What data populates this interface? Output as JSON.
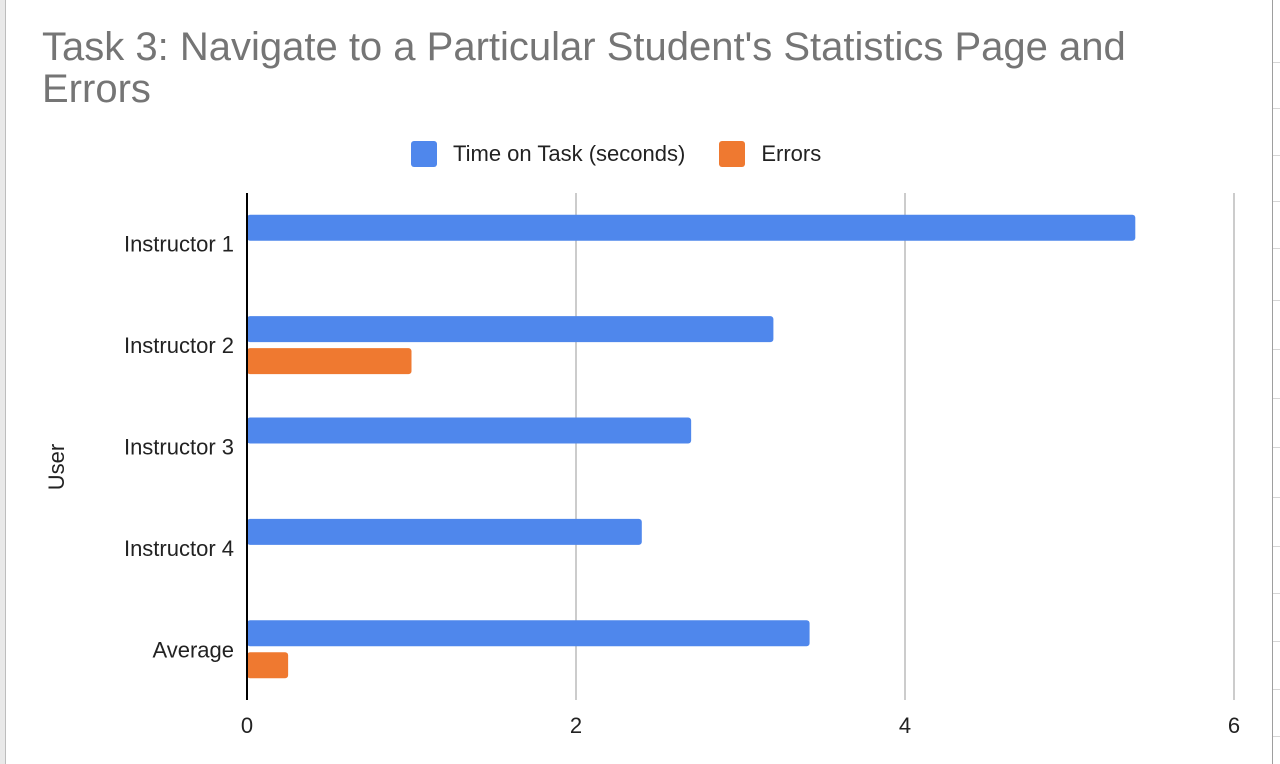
{
  "chart_data": {
    "type": "bar",
    "orientation": "horizontal",
    "title": "Task 3: Navigate to a Particular Student's Statistics Page and Errors",
    "ylabel": "User",
    "xlabel": "",
    "categories": [
      "Instructor 1",
      "Instructor 2",
      "Instructor 3",
      "Instructor 4",
      "Average"
    ],
    "series": [
      {
        "name": "Time on Task (seconds)",
        "color": "#4f87ec",
        "values": [
          5.4,
          3.2,
          2.7,
          2.4,
          3.42
        ]
      },
      {
        "name": "Errors",
        "color": "#ef7930",
        "values": [
          0,
          1,
          0,
          0,
          0.25
        ]
      }
    ],
    "xlim": [
      0,
      6
    ],
    "xticks": [
      "0",
      "2",
      "4",
      "6"
    ],
    "grid": true,
    "legend_position": "top"
  }
}
